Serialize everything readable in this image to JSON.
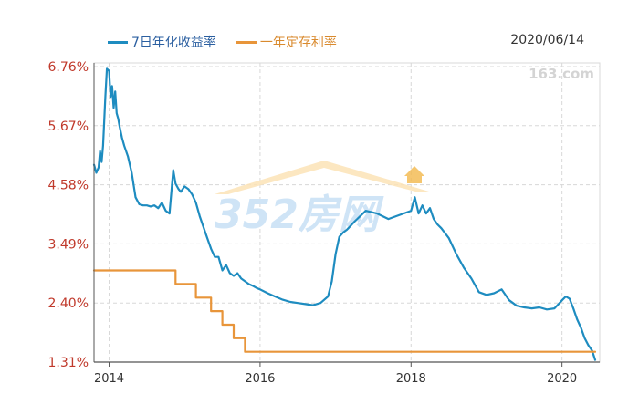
{
  "legend": {
    "series1_label": "7日年化收益率",
    "series2_label": "一年定存利率"
  },
  "date": "2020/06/14",
  "watermark": {
    "site_text": "163.com",
    "brand_text": "352房网"
  },
  "colors": {
    "series1": "#1e8cc0",
    "series2": "#e8953a",
    "ytick_text": "#c0392b",
    "grid": "#d8d8d8",
    "axis": "#555555"
  },
  "chart_data": {
    "type": "line",
    "title": "",
    "xlabel": "",
    "ylabel": "",
    "xlim": [
      2013.8,
      2020.5
    ],
    "ylim": [
      1.31,
      6.76
    ],
    "yticks": [
      6.76,
      5.67,
      4.58,
      3.49,
      2.4,
      1.31
    ],
    "ytick_labels": [
      "6.76%",
      "5.67%",
      "4.58%",
      "3.49%",
      "2.40%",
      "1.31%"
    ],
    "xticks": [
      2014,
      2016,
      2018,
      2020
    ],
    "xtick_labels": [
      "2014",
      "2016",
      "2018",
      "2020"
    ],
    "grid": true,
    "legend_position": "top-left",
    "series": [
      {
        "name": "7日年化收益率",
        "x": [
          2013.8,
          2013.83,
          2013.86,
          2013.88,
          2013.9,
          2013.92,
          2013.95,
          2013.97,
          2014.0,
          2014.02,
          2014.04,
          2014.06,
          2014.08,
          2014.1,
          2014.12,
          2014.14,
          2014.17,
          2014.2,
          2014.25,
          2014.3,
          2014.35,
          2014.4,
          2014.45,
          2014.5,
          2014.55,
          2014.6,
          2014.65,
          2014.7,
          2014.75,
          2014.8,
          2014.85,
          2014.88,
          2014.92,
          2014.95,
          2015.0,
          2015.05,
          2015.1,
          2015.15,
          2015.2,
          2015.25,
          2015.3,
          2015.35,
          2015.4,
          2015.45,
          2015.5,
          2015.55,
          2015.6,
          2015.65,
          2015.7,
          2015.75,
          2015.8,
          2015.85,
          2015.9,
          2015.95,
          2016.0,
          2016.1,
          2016.2,
          2016.3,
          2016.4,
          2016.5,
          2016.6,
          2016.7,
          2016.8,
          2016.9,
          2016.95,
          2017.0,
          2017.05,
          2017.1,
          2017.15,
          2017.25,
          2017.4,
          2017.55,
          2017.7,
          2017.8,
          2017.9,
          2018.0,
          2018.05,
          2018.1,
          2018.15,
          2018.2,
          2018.25,
          2018.3,
          2018.35,
          2018.4,
          2018.5,
          2018.6,
          2018.7,
          2018.8,
          2018.9,
          2019.0,
          2019.1,
          2019.2,
          2019.3,
          2019.4,
          2019.5,
          2019.6,
          2019.7,
          2019.8,
          2019.9,
          2020.0,
          2020.05,
          2020.1,
          2020.15,
          2020.2,
          2020.25,
          2020.3,
          2020.35,
          2020.4,
          2020.44
        ],
        "values": [
          4.95,
          4.8,
          4.9,
          5.2,
          5.0,
          5.3,
          6.2,
          6.72,
          6.68,
          6.2,
          6.4,
          6.0,
          6.3,
          5.9,
          5.8,
          5.65,
          5.45,
          5.3,
          5.1,
          4.8,
          4.35,
          4.22,
          4.2,
          4.2,
          4.18,
          4.2,
          4.15,
          4.25,
          4.1,
          4.05,
          4.85,
          4.6,
          4.5,
          4.45,
          4.55,
          4.5,
          4.4,
          4.25,
          4.0,
          3.8,
          3.6,
          3.4,
          3.25,
          3.25,
          3.0,
          3.1,
          2.95,
          2.9,
          2.95,
          2.85,
          2.8,
          2.75,
          2.72,
          2.68,
          2.65,
          2.58,
          2.52,
          2.46,
          2.42,
          2.4,
          2.38,
          2.36,
          2.4,
          2.52,
          2.8,
          3.3,
          3.62,
          3.7,
          3.75,
          3.9,
          4.1,
          4.05,
          3.95,
          4.0,
          4.05,
          4.1,
          4.35,
          4.05,
          4.2,
          4.05,
          4.15,
          3.95,
          3.85,
          3.78,
          3.6,
          3.3,
          3.05,
          2.85,
          2.6,
          2.55,
          2.58,
          2.65,
          2.45,
          2.35,
          2.32,
          2.3,
          2.32,
          2.28,
          2.3,
          2.45,
          2.52,
          2.48,
          2.3,
          2.1,
          1.95,
          1.75,
          1.62,
          1.52,
          1.35
        ]
      },
      {
        "name": "一年定存利率",
        "x": [
          2013.8,
          2014.88,
          2014.88,
          2015.15,
          2015.15,
          2015.35,
          2015.35,
          2015.5,
          2015.5,
          2015.65,
          2015.65,
          2015.8,
          2015.8,
          2020.44
        ],
        "values": [
          3.0,
          3.0,
          2.75,
          2.75,
          2.5,
          2.5,
          2.25,
          2.25,
          2.0,
          2.0,
          1.75,
          1.75,
          1.5,
          1.5
        ]
      }
    ]
  }
}
